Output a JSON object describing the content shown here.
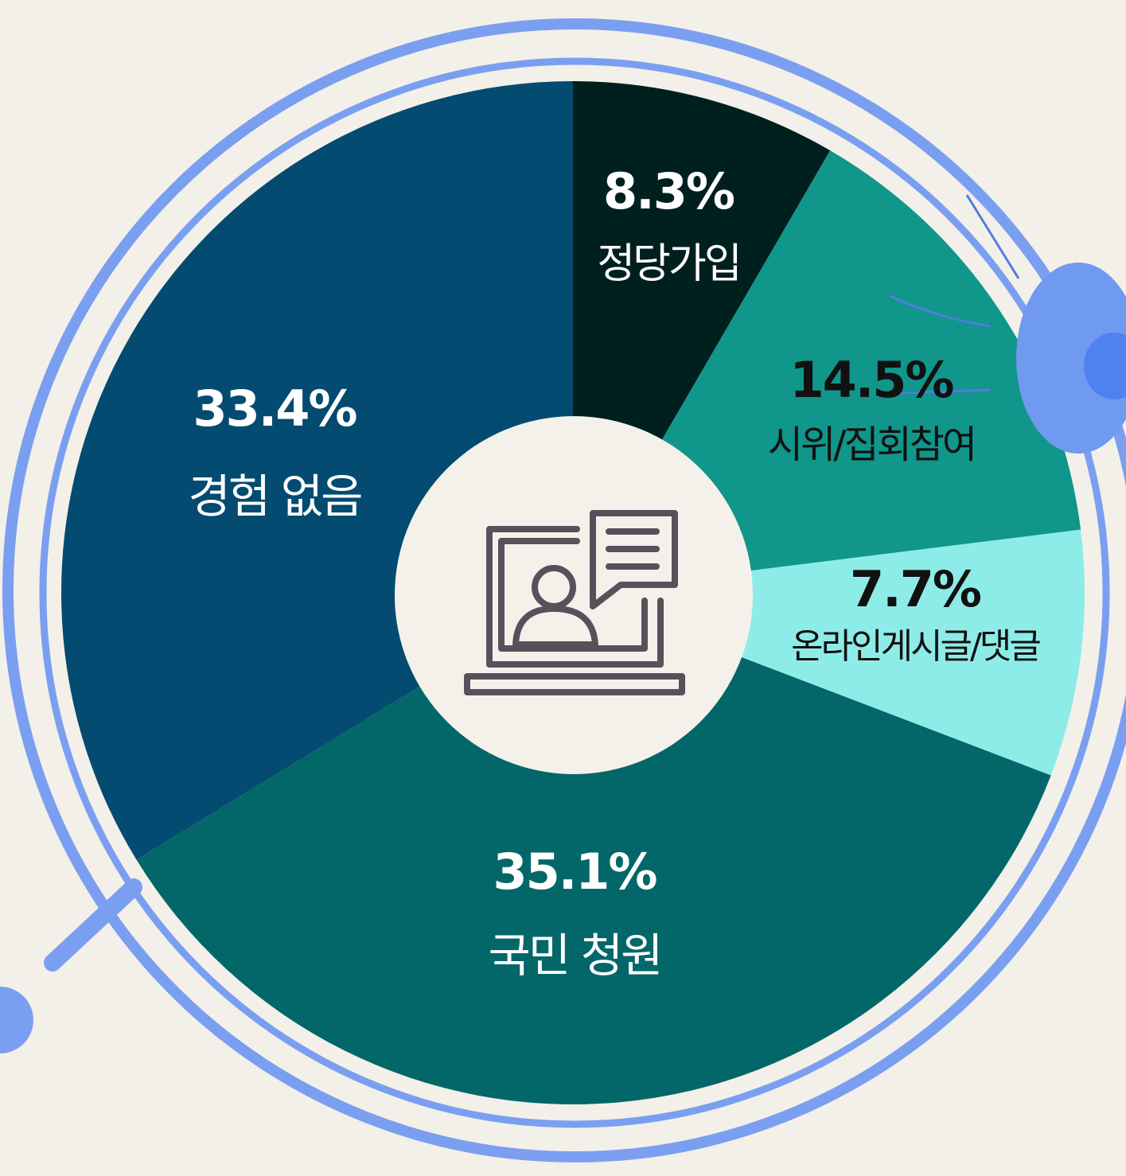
{
  "chart_data": {
    "type": "pie",
    "categories": [
      "정당가입",
      "시위/집회참여",
      "온라인게시글/댓글",
      "국민 청원",
      "경험 없음"
    ],
    "values": [
      8.3,
      14.5,
      7.7,
      35.1,
      33.4
    ],
    "value_labels": [
      "8.3%",
      "14.5%",
      "7.7%",
      "35.1%",
      "33.4%"
    ],
    "colors": [
      "#00201f",
      "#10968a",
      "#8eece8",
      "#03676a",
      "#034b70"
    ]
  }
}
